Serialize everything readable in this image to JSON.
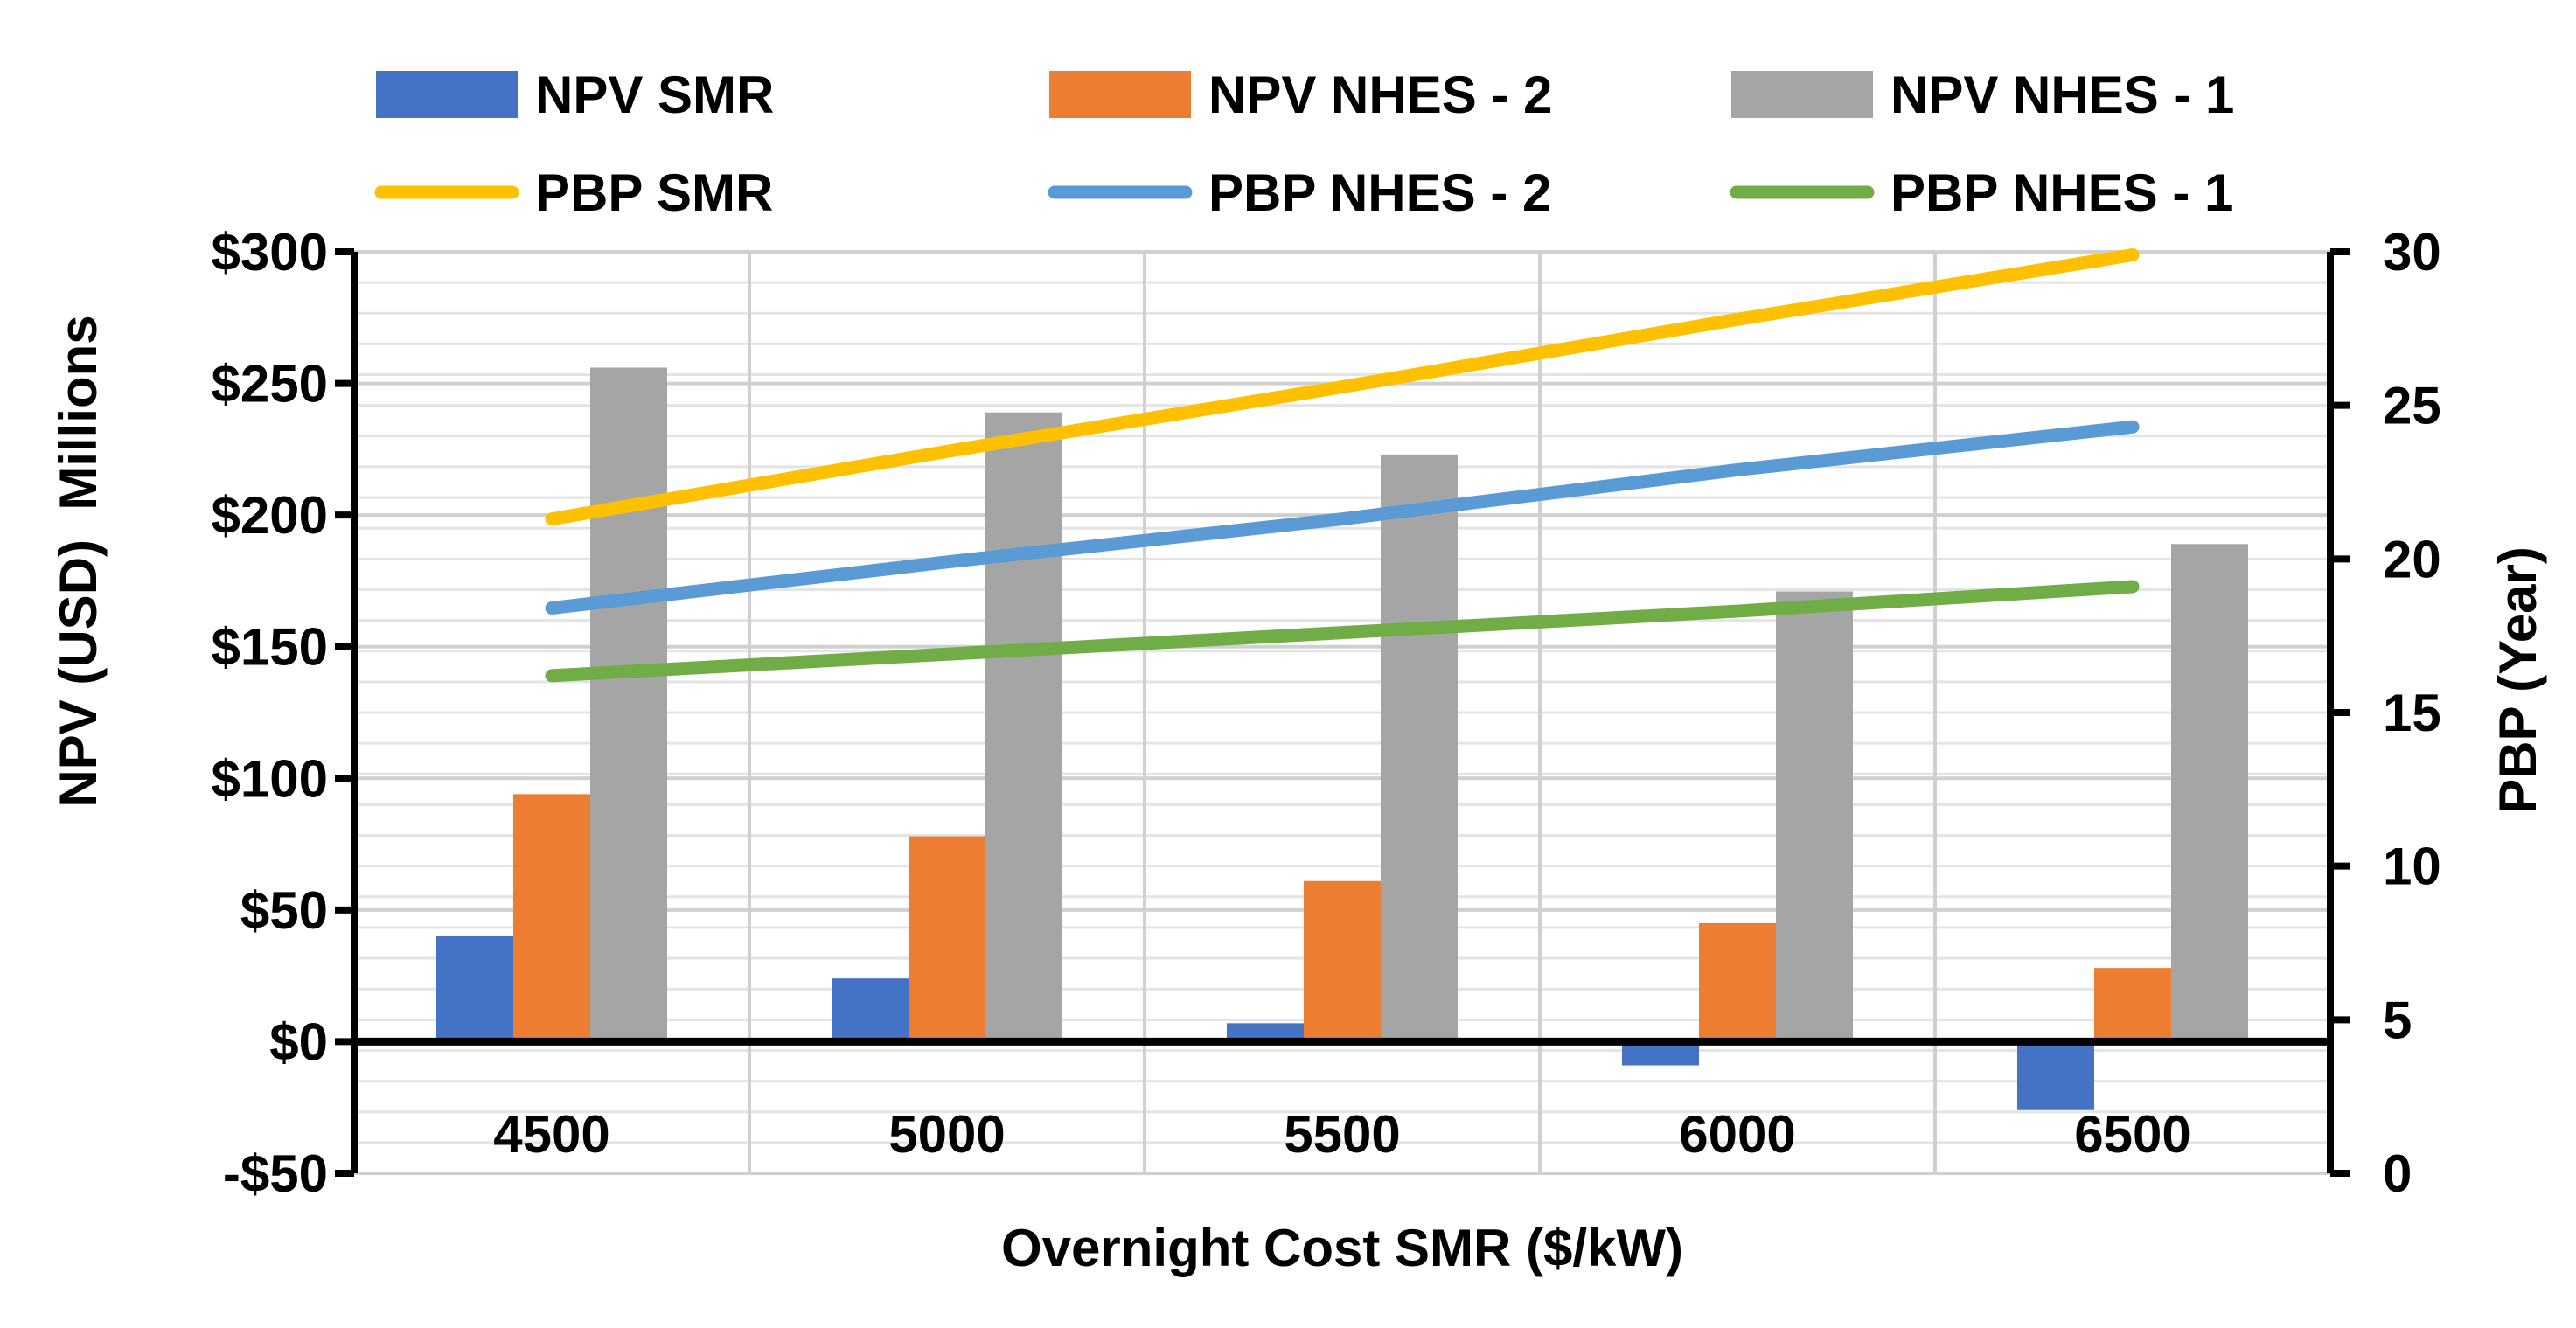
{
  "chart_data": {
    "type": "bar+line",
    "title": "",
    "xlabel": "Overnight Cost SMR ($/kW)",
    "ylabel": "NPV (USD)  Millions",
    "y2label": "PBP (Year)",
    "categories": [
      "4500",
      "5000",
      "5500",
      "6000",
      "6500"
    ],
    "ylim": [
      -50,
      300
    ],
    "y_ticks": [
      300,
      250,
      200,
      150,
      100,
      50,
      0,
      -50
    ],
    "y_tick_labels": [
      "$300",
      "$250",
      "$200",
      "$150",
      "$100",
      "$50",
      "$0",
      "-$50"
    ],
    "y2lim": [
      0,
      30
    ],
    "y2_ticks": [
      30,
      25,
      20,
      15,
      10,
      5,
      0
    ],
    "y2_tick_labels": [
      "30",
      "25",
      "20",
      "15",
      "10",
      "5",
      "0"
    ],
    "legend_position": "top",
    "grid": true,
    "bar_series": [
      {
        "name": "NPV SMR",
        "color": "#4472C4",
        "values": [
          40,
          24,
          7,
          -9,
          -26
        ]
      },
      {
        "name": "NPV NHES - 2",
        "color": "#ED7D31",
        "values": [
          94,
          78,
          61,
          45,
          28
        ]
      },
      {
        "name": "NPV NHES - 1",
        "color": "#A5A5A5",
        "values": [
          256,
          239,
          223,
          171,
          189
        ]
      }
    ],
    "line_series": [
      {
        "name": "PBP SMR",
        "color": "#FFC000",
        "values": [
          21.3,
          23.5,
          25.6,
          27.8,
          29.9
        ]
      },
      {
        "name": "PBP NHES - 2",
        "color": "#5B9BD5",
        "values": [
          18.4,
          19.9,
          21.3,
          22.9,
          24.3
        ]
      },
      {
        "name": "PBP NHES - 1",
        "color": "#70AD47",
        "values": [
          16.2,
          16.9,
          17.6,
          18.3,
          19.1
        ]
      }
    ]
  }
}
